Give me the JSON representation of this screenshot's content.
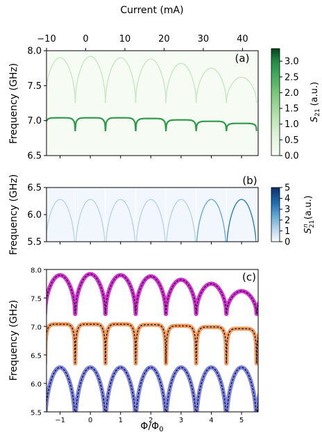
{
  "top_axis": {
    "label": "Current (mA)",
    "ticks": [
      "−10",
      "0",
      "10",
      "20",
      "30",
      "40"
    ],
    "tick_values": [
      -10,
      0,
      10,
      20,
      30,
      40
    ],
    "range": [
      -10,
      44
    ]
  },
  "chart_data": [
    {
      "panel": "(a)",
      "type": "heatmap",
      "ylabel": "Frequency (GHz)",
      "ylim": [
        6.5,
        8.0
      ],
      "yticks": [
        "6.5",
        "7.0",
        "7.5",
        "8.0"
      ],
      "ytick_values": [
        6.5,
        7.0,
        7.5,
        8.0
      ],
      "xlim": [
        -1.45,
        5.55
      ],
      "colormap": "Greens",
      "colorbar": {
        "label": "S21 (a.u.)",
        "label_main": "S",
        "label_sub": "21",
        "label_unit": "(a.u.)",
        "range": [
          0,
          3.4
        ],
        "ticks": [
          "0.0",
          "0.5",
          "1.0",
          "1.5",
          "2.0",
          "2.5",
          "3.0"
        ],
        "tick_values": [
          0.0,
          0.5,
          1.0,
          1.5,
          2.0,
          2.5,
          3.0
        ]
      },
      "series": [
        {
          "role": "upper-mode",
          "peak_values": [
            7.9,
            7.92,
            7.9,
            7.88,
            7.82,
            7.75,
            7.62
          ],
          "intensity": 0.35
        },
        {
          "role": "middle-mode",
          "peak_values": [
            7.04,
            7.04,
            7.04,
            7.03,
            7.01,
            6.99,
            6.96
          ],
          "intensity": 2.8
        }
      ]
    },
    {
      "panel": "(b)",
      "type": "heatmap",
      "ylabel": "Frequency (GHz)",
      "ylim": [
        5.5,
        6.5
      ],
      "yticks": [
        "5.5",
        "6.0",
        "6.5"
      ],
      "ytick_values": [
        5.5,
        6.0,
        6.5
      ],
      "xlim": [
        -1.45,
        5.55
      ],
      "colormap": "Blues",
      "colorbar": {
        "label": "S21^n (a.u.)",
        "label_main": "S",
        "label_sub": "21",
        "label_sup": "n",
        "label_unit": "(a.u.)",
        "range": [
          0,
          5
        ],
        "ticks": [
          "0",
          "1",
          "2",
          "3",
          "4",
          "5"
        ],
        "tick_values": [
          0,
          1,
          2,
          3,
          4,
          5
        ]
      },
      "series": [
        {
          "role": "lower-mode",
          "peak_values": [
            6.28,
            6.28,
            6.28,
            6.28,
            6.28,
            6.28,
            6.28
          ],
          "intensity": [
            1.0,
            0.9,
            0.9,
            1.1,
            1.3,
            1.8,
            3.2
          ]
        }
      ]
    },
    {
      "panel": "(c)",
      "type": "line",
      "xlabel": "Φ/Φ0",
      "xlabel_main": "Φ/Φ",
      "xlabel_sub": "0",
      "ylabel": "Frequency (GHz)",
      "xlim": [
        -1.45,
        5.55
      ],
      "ylim": [
        5.5,
        8.0
      ],
      "xticks": [
        "−1",
        "0",
        "1",
        "2",
        "3",
        "4",
        "5"
      ],
      "xtick_values": [
        -1,
        0,
        1,
        2,
        3,
        4,
        5
      ],
      "yticks": [
        "5.5",
        "6.0",
        "6.5",
        "7.0",
        "7.5",
        "8.0"
      ],
      "ytick_values": [
        5.5,
        6.0,
        6.5,
        7.0,
        7.5,
        8.0
      ],
      "series": [
        {
          "role": "upper",
          "color": "#d62fd6",
          "fit_color": "#000000",
          "peak_values": [
            7.9,
            7.92,
            7.9,
            7.88,
            7.82,
            7.75,
            7.62
          ],
          "min_values": [
            7.22,
            7.25,
            7.27,
            7.29,
            7.31,
            7.33,
            7.34,
            7.3
          ]
        },
        {
          "role": "middle",
          "color": "#f39b5e",
          "fit_color": "#000000",
          "peak_values": [
            7.04,
            7.04,
            7.04,
            7.03,
            7.01,
            6.99,
            6.96
          ],
          "min_values": [
            6.4,
            6.4,
            6.4,
            6.4,
            6.4,
            6.4,
            6.4,
            6.4
          ]
        },
        {
          "role": "lower",
          "color": "#7b82e0",
          "fit_color": "#000000",
          "peak_values": [
            6.28,
            6.28,
            6.28,
            6.28,
            6.28,
            6.28,
            6.28
          ],
          "min_values": [
            5.5,
            5.5,
            5.5,
            5.5,
            5.5,
            5.5,
            5.5,
            5.5
          ]
        }
      ]
    }
  ]
}
